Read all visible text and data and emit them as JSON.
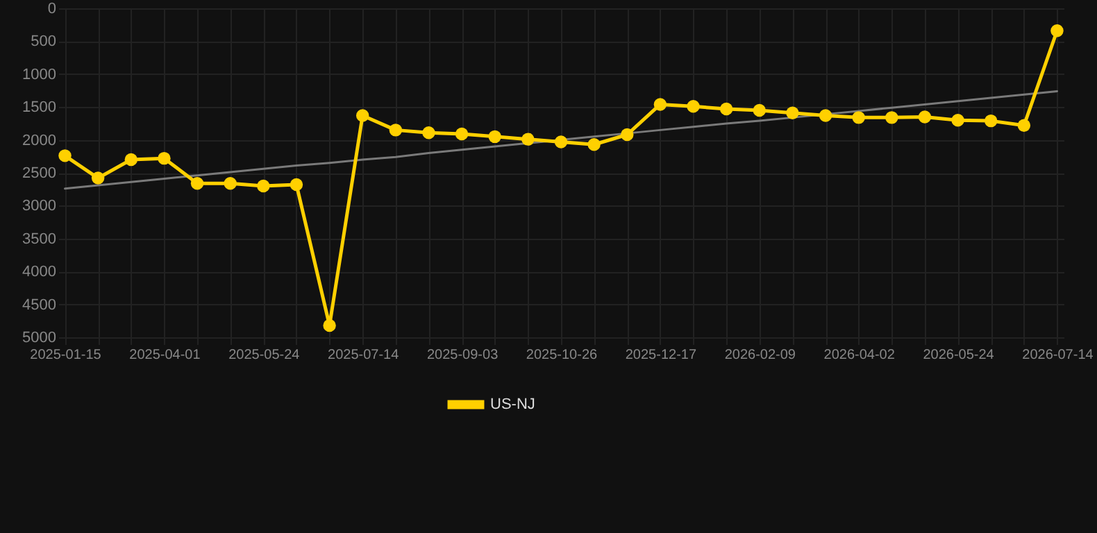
{
  "chart_data": {
    "type": "line",
    "categories": [
      "2025-01-15",
      null,
      null,
      "2025-04-01",
      null,
      null,
      "2025-05-24",
      null,
      null,
      "2025-07-14",
      null,
      null,
      "2025-09-03",
      null,
      null,
      "2025-10-26",
      null,
      null,
      "2025-12-17",
      null,
      null,
      "2026-02-09",
      null,
      null,
      "2026-04-02",
      null,
      null,
      "2026-05-24",
      null,
      null,
      "2026-07-14"
    ],
    "series": [
      {
        "name": "US-NJ",
        "color": "#ffd000",
        "values": [
          2240,
          2580,
          2300,
          2280,
          2660,
          2660,
          2700,
          2680,
          4820,
          1630,
          1850,
          1890,
          1910,
          1950,
          1990,
          2030,
          2070,
          1920,
          1460,
          1490,
          1530,
          1550,
          1590,
          1630,
          1660,
          1660,
          1650,
          1700,
          1710,
          1780,
          340
        ]
      },
      {
        "type": "line",
        "color": "#7a7a7a",
        "marker": "none",
        "values": [
          2740,
          2690,
          2640,
          2590,
          2540,
          2490,
          2440,
          2390,
          2350,
          2300,
          2260,
          2200,
          2150,
          2100,
          2050,
          2000,
          1950,
          1900,
          1850,
          1800,
          1750,
          1710,
          1660,
          1610,
          1560,
          1510,
          1460,
          1410,
          1360,
          1310,
          1260
        ]
      }
    ],
    "ylim": [
      5000,
      0
    ],
    "yticks": [
      0,
      500,
      1000,
      1500,
      2000,
      2500,
      3000,
      3500,
      4000,
      4500,
      5000
    ],
    "grid": true,
    "legend": "bottom",
    "marker": "circle",
    "line_style": "solid"
  }
}
